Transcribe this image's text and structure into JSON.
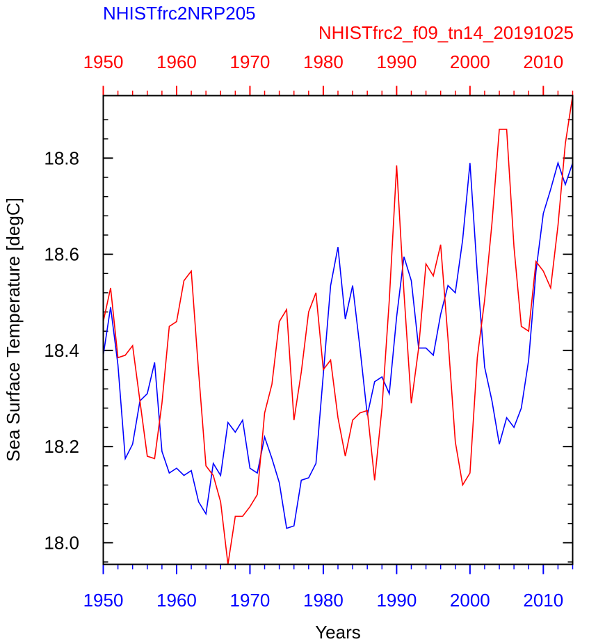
{
  "chart_data": {
    "type": "line",
    "title_blue": "NHISTfrc2NRP205",
    "title_red": "NHISTfrc2_f09_tn14_20191025",
    "xlabel": "Years",
    "ylabel": "Sea Surface Temperature [degC]",
    "xlim": [
      1950,
      2014
    ],
    "ylim": [
      17.955,
      18.93
    ],
    "x_ticks": [
      1950,
      1960,
      1970,
      1980,
      1990,
      2000,
      2010
    ],
    "x_tick_labels": [
      "1950",
      "1960",
      "1970",
      "1980",
      "1990",
      "2000",
      "2010"
    ],
    "y_ticks": [
      18.0,
      18.2,
      18.4,
      18.6,
      18.8
    ],
    "y_tick_labels": [
      "18.0",
      "18.2",
      "18.4",
      "18.6",
      "18.8"
    ],
    "colors": {
      "blue": "#0000ff",
      "red": "#ff0000",
      "axis": "#000000"
    },
    "series": [
      {
        "name": "NHISTfrc2NRP205",
        "color": "#0000ff",
        "start_year": 1950,
        "values": [
          18.39,
          18.49,
          18.37,
          18.175,
          18.205,
          18.295,
          18.31,
          18.375,
          18.19,
          18.145,
          18.155,
          18.14,
          18.15,
          18.085,
          18.06,
          18.165,
          18.14,
          18.25,
          18.23,
          18.255,
          18.155,
          18.145,
          18.22,
          18.175,
          18.125,
          18.03,
          18.035,
          18.13,
          18.135,
          18.165,
          18.35,
          18.535,
          18.615,
          18.465,
          18.535,
          18.405,
          18.265,
          18.335,
          18.345,
          18.31,
          18.47,
          18.595,
          18.545,
          18.405,
          18.405,
          18.39,
          18.475,
          18.535,
          18.52,
          18.63,
          18.79,
          18.56,
          18.365,
          18.295,
          18.205,
          18.26,
          18.24,
          18.28,
          18.38,
          18.565,
          18.685,
          18.735,
          18.79,
          18.745,
          18.79
        ]
      },
      {
        "name": "NHISTfrc2_f09_tn14_20191025",
        "color": "#ff0000",
        "start_year": 1950,
        "values": [
          18.46,
          18.53,
          18.385,
          18.39,
          18.41,
          18.295,
          18.18,
          18.175,
          18.29,
          18.45,
          18.46,
          18.545,
          18.565,
          18.355,
          18.16,
          18.14,
          18.085,
          17.955,
          18.055,
          18.055,
          18.075,
          18.1,
          18.27,
          18.33,
          18.46,
          18.485,
          18.255,
          18.355,
          18.48,
          18.52,
          18.36,
          18.38,
          18.26,
          18.18,
          18.255,
          18.27,
          18.275,
          18.13,
          18.28,
          18.505,
          18.785,
          18.52,
          18.29,
          18.405,
          18.58,
          18.555,
          18.62,
          18.425,
          18.21,
          18.12,
          18.145,
          18.385,
          18.505,
          18.665,
          18.86,
          18.86,
          18.615,
          18.45,
          18.44,
          18.585,
          18.565,
          18.53,
          18.66,
          18.83,
          18.93
        ]
      }
    ]
  }
}
